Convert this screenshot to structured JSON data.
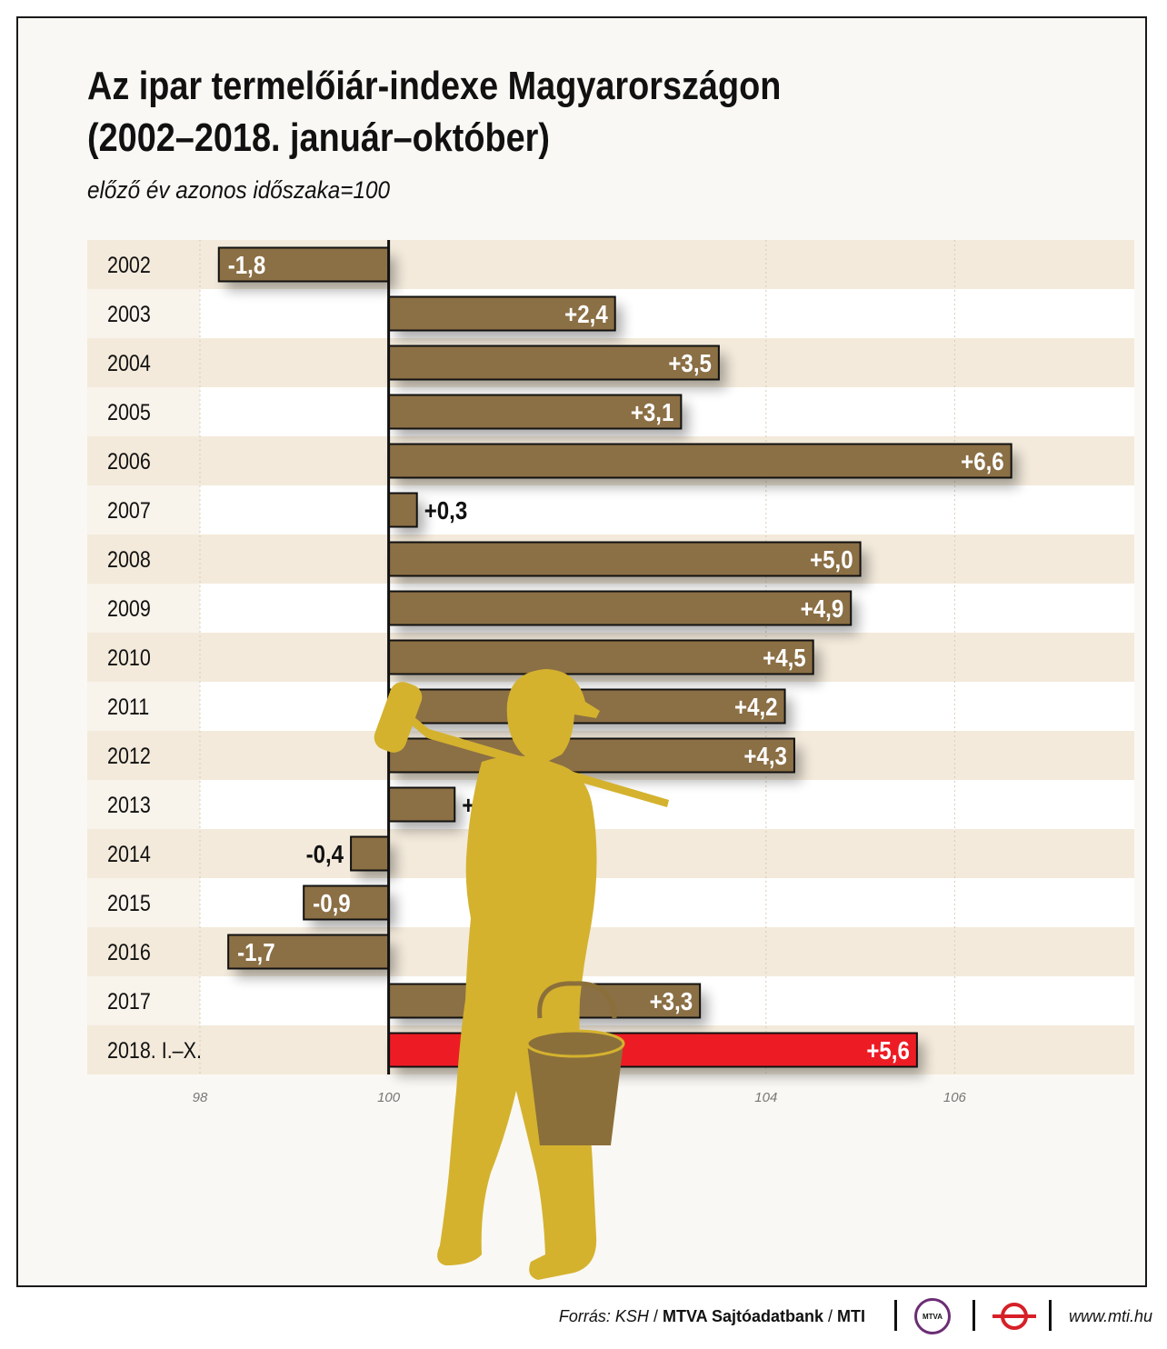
{
  "title_lines": [
    "Az ipar termelőiár-indexe Magyarországon",
    "(2002–2018. január–október)"
  ],
  "subtitle": "előző év azonos időszaka=100",
  "chart_data": {
    "type": "bar",
    "orientation": "horizontal",
    "baseline": 100,
    "categories": [
      "2002",
      "2003",
      "2004",
      "2005",
      "2006",
      "2007",
      "2008",
      "2009",
      "2010",
      "2011",
      "2012",
      "2013",
      "2014",
      "2015",
      "2016",
      "2017",
      "2018. I.–X."
    ],
    "values": [
      -1.8,
      2.4,
      3.5,
      3.1,
      6.6,
      0.3,
      5.0,
      4.9,
      4.5,
      4.2,
      4.3,
      0.7,
      -0.4,
      -0.9,
      -1.7,
      3.3,
      5.6
    ],
    "data_labels": [
      "-1,8",
      "+2,4",
      "+3,5",
      "+3,1",
      "+6,6",
      "+0,3",
      "+5,0",
      "+4,9",
      "+4,5",
      "+4,2",
      "+4,3",
      "+0,7",
      "-0,4",
      "-0,9",
      "-1,7",
      "+3,3",
      "+5,6"
    ],
    "highlight_index": 16,
    "xlim": [
      98,
      108
    ],
    "xticks": [
      98,
      100,
      104,
      106
    ],
    "xtick_labels": [
      "98",
      "100",
      "104",
      "106"
    ],
    "colors": {
      "bar": "#8b6f45",
      "highlight": "#ed1c24",
      "row_shaded": "#f3eadb",
      "row_plain": "#ffffff",
      "gridline": "#d8ccb6",
      "baseline": "#111111"
    },
    "grid": true
  },
  "illustration": {
    "name": "worker-silhouette",
    "color": "#d4b22e",
    "bucket_color": "#8b6f3a"
  },
  "footer": {
    "source_italic": "Forrás: KSH",
    "sep1": " / ",
    "credit_bold": "MTVA Sajtóadatbank",
    "sep2": " / ",
    "agency_bold": "MTI",
    "mtva_logo_text": "MTVA",
    "website": "www.mti.hu"
  }
}
